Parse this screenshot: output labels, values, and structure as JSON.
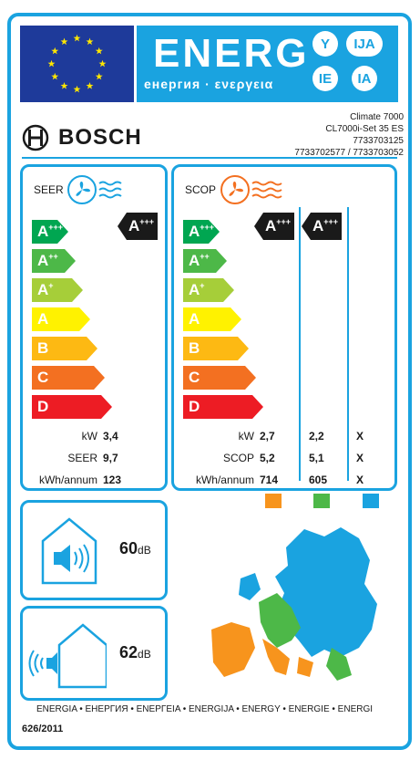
{
  "header": {
    "title": "ENERG",
    "subtitle": "енергия · ενεργεια",
    "lang_codes": [
      "Y",
      "IJA",
      "IE",
      "IA"
    ]
  },
  "brand": {
    "name": "BOSCH",
    "model_lines": [
      "Climate 7000",
      "CL7000i-Set 35 ES",
      "7733703125",
      "7733702577 / 7733703052"
    ]
  },
  "cooling": {
    "label": "SEER",
    "class_labels": [
      "A",
      "A",
      "A",
      "A",
      "B",
      "C",
      "D"
    ],
    "class_sups": [
      "+++",
      "++",
      "+",
      "",
      "",
      "",
      ""
    ],
    "class_colors": [
      "#00a651",
      "#4db848",
      "#a6ce39",
      "#fff200",
      "#fdb913",
      "#f37021",
      "#ed1c24"
    ],
    "rating": "A",
    "rating_sup": "+++",
    "rows": [
      {
        "label": "kW",
        "value": "3,4"
      },
      {
        "label": "SEER",
        "value": "9,7"
      },
      {
        "label": "kWh/annum",
        "value": "123"
      }
    ]
  },
  "heating": {
    "label": "SCOP",
    "ratings": [
      {
        "label": "A",
        "sup": "+++"
      },
      {
        "label": "A",
        "sup": "+++"
      }
    ],
    "rows": [
      {
        "label": "kW",
        "values": [
          "2,7",
          "2,2",
          "X"
        ]
      },
      {
        "label": "SCOP",
        "values": [
          "5,2",
          "5,1",
          "X"
        ]
      },
      {
        "label": "kWh/annum",
        "values": [
          "714",
          "605",
          "X"
        ]
      }
    ],
    "zone_colors": [
      "#f7941d",
      "#4db848",
      "#1aa3e0"
    ]
  },
  "noise": {
    "indoor": {
      "value": "60",
      "unit": "dB"
    },
    "outdoor": {
      "value": "62",
      "unit": "dB"
    }
  },
  "footer": {
    "languages": "ENERGIA • ЕНЕРГИЯ • ΕΝΕΡΓΕΙΑ • ENERGIJA • ENERGY • ENERGIE • ENERGI",
    "regulation": "626/2011"
  }
}
